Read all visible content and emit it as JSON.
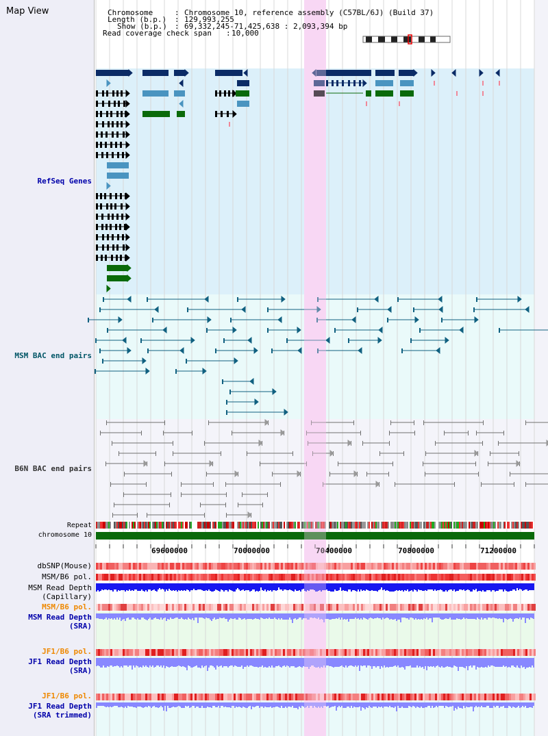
{
  "title": "Map View",
  "info": {
    "chromosome_label": "Chromosome",
    "chromosome_value": "Chromosome 10, reference assembly (C57BL/6J) (Build 37)",
    "length_label": "Length (b.p.)",
    "length_value": "129,993,255",
    "show_label": "Show (b.p.)",
    "show_value": "69,332,245-71,425,638 : 2,093,394 bp",
    "coverage_label": "Read coverage check span",
    "coverage_value": "10,000"
  },
  "tracks": {
    "refseq": "RefSeq Genes",
    "msm_bac": "MSM BAC end pairs",
    "b6n_bac": "B6N BAC end pairs",
    "repeat": "Repeat",
    "chromosome": "chromosome 10",
    "dbsnp": "dbSNP(Mouse)",
    "msm_b6_pol_1": "MSM/B6 pol.",
    "msm_depth_cap_1": "MSM Read Depth",
    "msm_depth_cap_2": "(Capillary)",
    "msm_b6_pol_2": "MSM/B6 pol.",
    "msm_depth_sra_1": "MSM Read Depth",
    "msm_depth_sra_2": "(SRA)",
    "jf1_pol_1": "JF1/B6 pol.",
    "jf1_depth_1": "JF1 Read Depth",
    "jf1_depth_2": "(SRA)",
    "jf1_pol_2": "JF1/B6 pol.",
    "jf1_trim_1": "JF1 Read Depth",
    "jf1_trim_2": "(SRA trimmed)"
  },
  "axis": {
    "ticks": [
      "69600000",
      "70000000",
      "70400000",
      "70800000",
      "71200000"
    ]
  },
  "colors": {
    "refseq_bg": "#dcf0fa",
    "bac_bg": "#eafafa",
    "highlight": "#f8d8f4",
    "gene_dark": "#0b2b66",
    "gene_light": "#4a94c0",
    "gene_green": "#0a6a0a",
    "msm_line": "#106080",
    "b6n_line": "#707070",
    "chrom_green": "#0a6a0a",
    "depth_blue": "#1818f0",
    "depth_light": "#8888ff"
  }
}
